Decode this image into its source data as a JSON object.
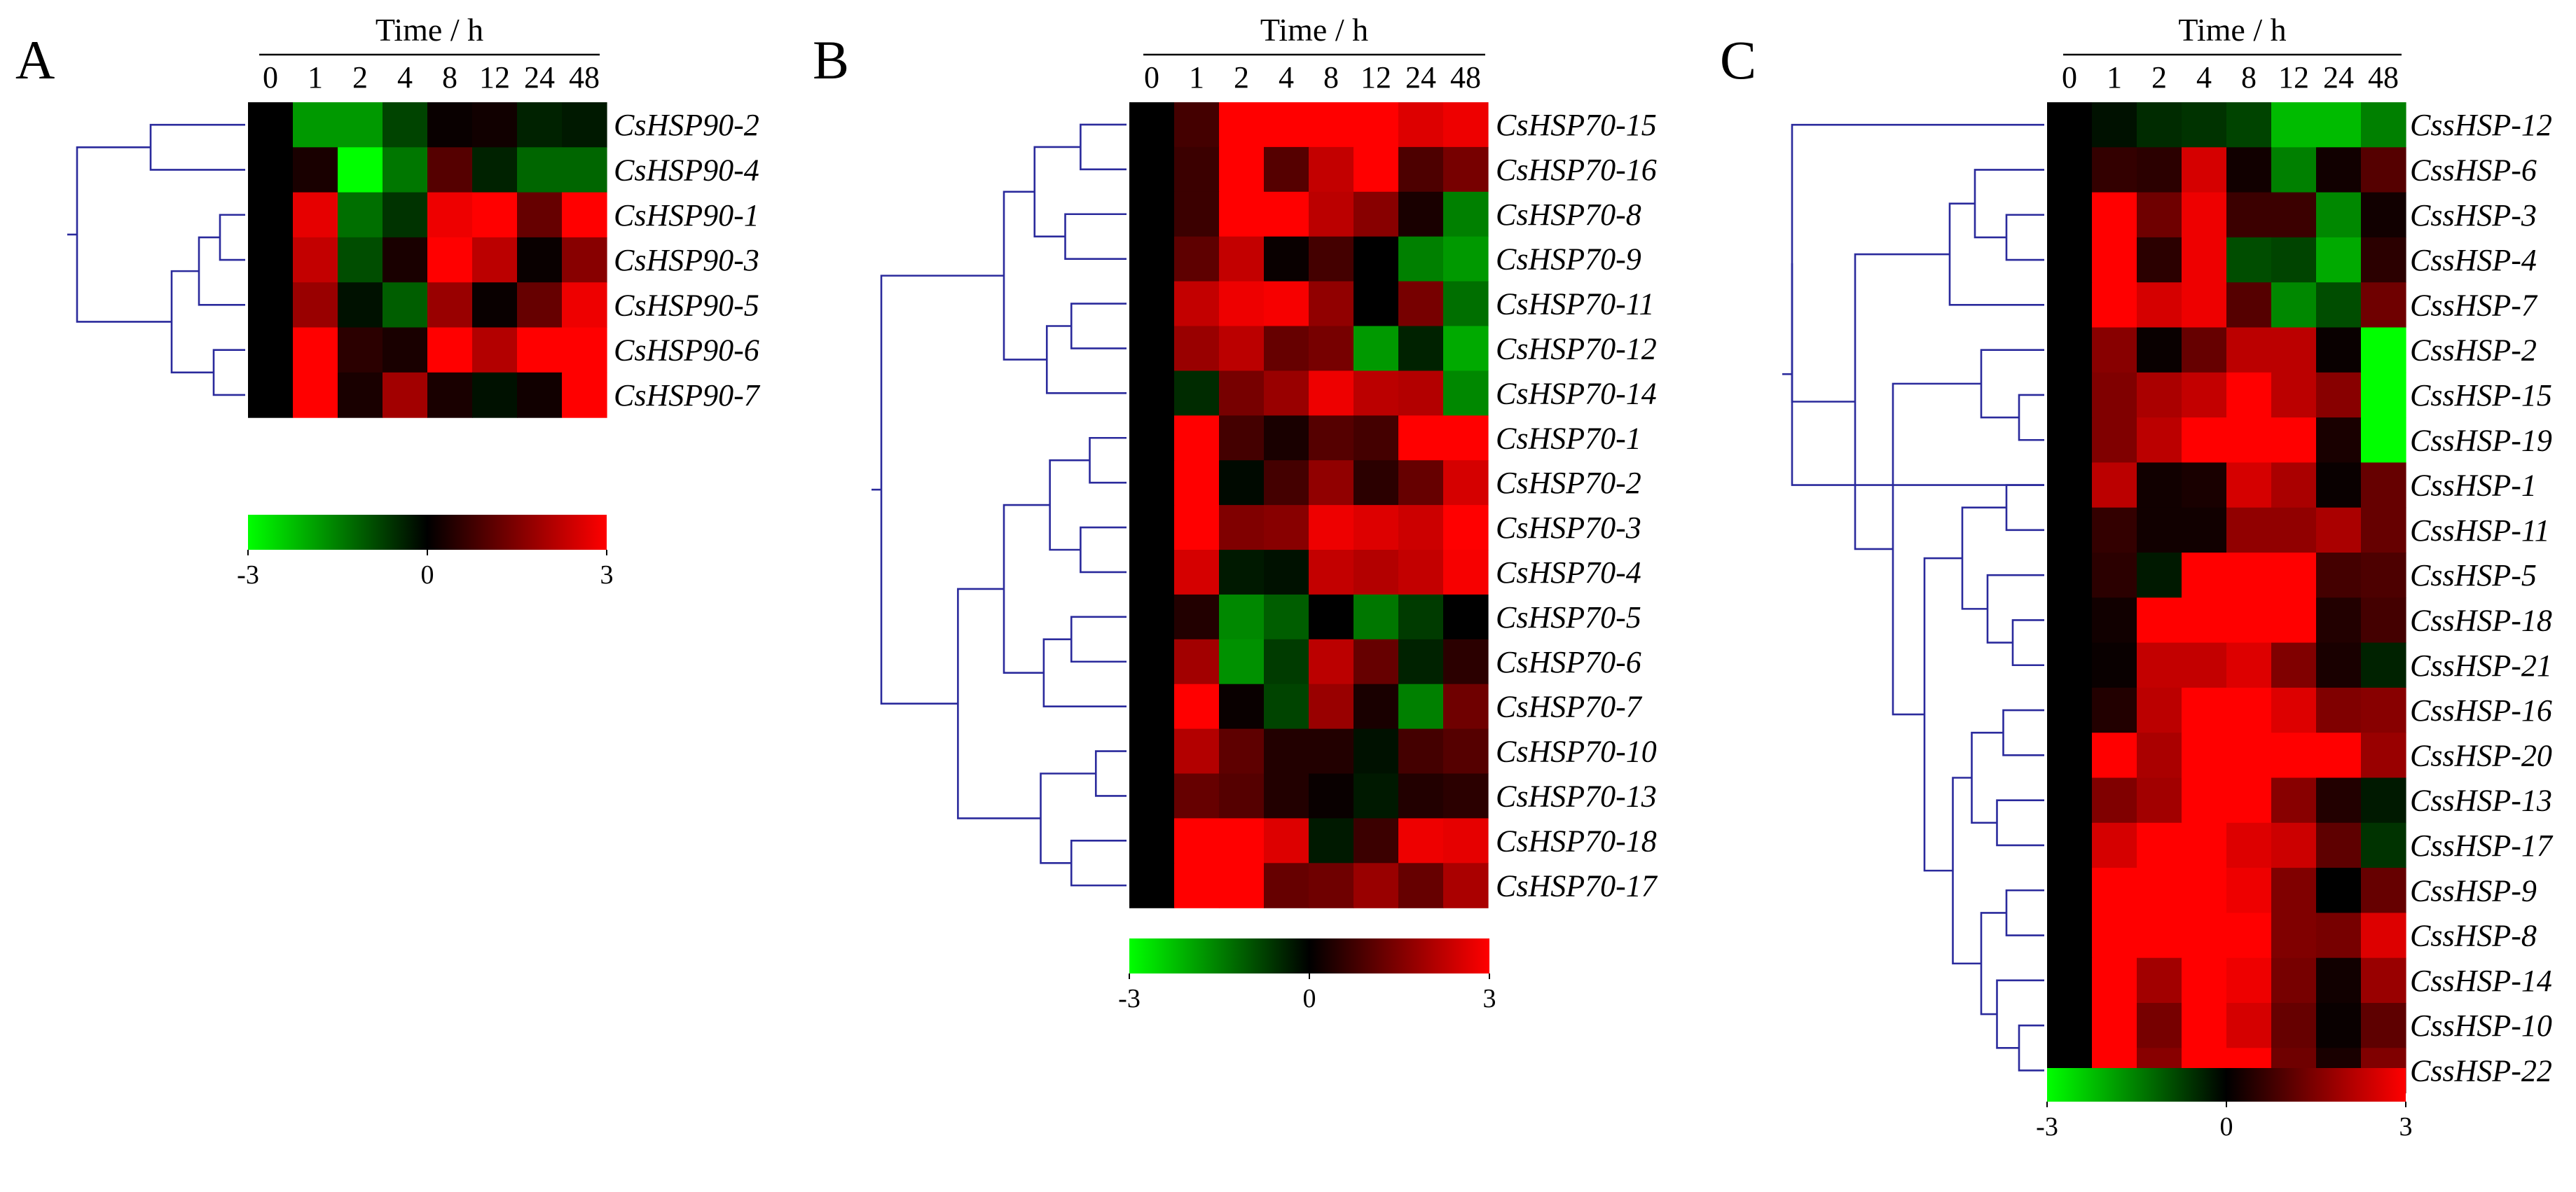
{
  "chart_data": [
    {
      "type": "heatmap",
      "panel": "A",
      "title": "Time / h",
      "columns": [
        "0",
        "1",
        "2",
        "4",
        "8",
        "12",
        "24",
        "48"
      ],
      "rows": [
        "CsHSP90-2",
        "CsHSP90-4",
        "CsHSP90-1",
        "CsHSP90-3",
        "CsHSP90-5",
        "CsHSP90-6",
        "CsHSP90-7"
      ],
      "values": [
        [
          0,
          -1.8,
          -1.8,
          -0.8,
          0.1,
          0.2,
          -0.4,
          -0.3
        ],
        [
          0,
          0.3,
          -3,
          -1.4,
          1.0,
          -0.4,
          -1.2,
          -1.2
        ],
        [
          0,
          2.7,
          -1.3,
          -0.6,
          2.8,
          3.0,
          1.2,
          3.0
        ],
        [
          0,
          2.3,
          -0.9,
          0.3,
          3.0,
          2.2,
          0.1,
          1.6
        ],
        [
          0,
          1.8,
          -0.2,
          -1.1,
          1.8,
          0.1,
          1.2,
          2.8
        ],
        [
          0,
          3.0,
          0.5,
          0.3,
          3.0,
          2.1,
          3.0,
          3.0
        ],
        [
          0,
          3.0,
          0.3,
          1.9,
          0.3,
          -0.2,
          0.2,
          3.0
        ]
      ],
      "colorbar": {
        "min": -3,
        "max": 3,
        "labels": [
          "-3",
          "0",
          "3"
        ]
      }
    },
    {
      "type": "heatmap",
      "panel": "B",
      "title": "Time / h",
      "columns": [
        "0",
        "1",
        "2",
        "4",
        "8",
        "12",
        "24",
        "48"
      ],
      "rows": [
        "CsHSP70-15",
        "CsHSP70-16",
        "CsHSP70-8",
        "CsHSP70-9",
        "CsHSP70-11",
        "CsHSP70-12",
        "CsHSP70-14",
        "CsHSP70-1",
        "CsHSP70-2",
        "CsHSP70-3",
        "CsHSP70-4",
        "CsHSP70-5",
        "CsHSP70-6",
        "CsHSP70-7",
        "CsHSP70-10",
        "CsHSP70-13",
        "CsHSP70-18",
        "CsHSP70-17"
      ],
      "values": [
        [
          0,
          0.8,
          3.0,
          3.0,
          3.0,
          3.0,
          2.6,
          2.8
        ],
        [
          0,
          0.7,
          3.0,
          1.0,
          2.3,
          3.0,
          0.9,
          1.4
        ],
        [
          0,
          0.7,
          3.0,
          3.0,
          2.2,
          1.6,
          0.3,
          -1.5
        ],
        [
          0,
          1.1,
          2.3,
          0.1,
          0.8,
          0.0,
          -1.5,
          -1.8
        ],
        [
          0,
          2.3,
          2.8,
          2.9,
          1.7,
          0.0,
          1.4,
          -1.3
        ],
        [
          0,
          1.8,
          2.2,
          1.2,
          1.4,
          -1.8,
          -0.4,
          -2.0
        ],
        [
          0,
          -0.5,
          1.4,
          1.8,
          2.8,
          2.2,
          2.1,
          -1.6
        ],
        [
          0,
          3.0,
          0.8,
          0.3,
          1.0,
          0.8,
          3.0,
          3.0
        ],
        [
          0,
          3.0,
          -0.1,
          0.8,
          1.7,
          0.5,
          1.2,
          2.5
        ],
        [
          0,
          3.0,
          1.5,
          1.6,
          2.8,
          2.6,
          2.4,
          3.0
        ],
        [
          0,
          2.5,
          -0.3,
          -0.2,
          2.3,
          2.1,
          2.3,
          2.9
        ],
        [
          0,
          0.4,
          -1.6,
          -1.1,
          0.0,
          -1.4,
          -0.7,
          0.0
        ],
        [
          0,
          1.9,
          -1.7,
          -0.7,
          2.2,
          1.2,
          -0.4,
          0.5
        ],
        [
          0,
          3.0,
          0.1,
          -0.8,
          1.8,
          0.3,
          -1.5,
          1.3
        ],
        [
          0,
          2.1,
          1.1,
          0.4,
          0.4,
          -0.2,
          0.8,
          1.0
        ],
        [
          0,
          1.2,
          1.0,
          0.4,
          0.1,
          -0.3,
          0.4,
          0.5
        ],
        [
          0,
          3.0,
          3.0,
          2.6,
          -0.3,
          0.7,
          2.8,
          2.7
        ],
        [
          0,
          3.0,
          3.0,
          1.2,
          1.3,
          1.8,
          1.2,
          2.0
        ]
      ],
      "colorbar": {
        "min": -3,
        "max": 3,
        "labels": [
          "-3",
          "0",
          "3"
        ]
      }
    },
    {
      "type": "heatmap",
      "panel": "C",
      "title": "Time / h",
      "columns": [
        "0",
        "1",
        "2",
        "4",
        "8",
        "12",
        "24",
        "48"
      ],
      "rows": [
        "CssHSP-12",
        "CssHSP-6",
        "CssHSP-3",
        "CssHSP-4",
        "CssHSP-7",
        "CssHSP-2",
        "CssHSP-15",
        "CssHSP-19",
        "CssHSP-1",
        "CssHSP-11",
        "CssHSP-5",
        "CssHSP-18",
        "CssHSP-21",
        "CssHSP-16",
        "CssHSP-20",
        "CssHSP-13",
        "CssHSP-17",
        "CssHSP-9",
        "CssHSP-8",
        "CssHSP-14",
        "CssHSP-10",
        "CssHSP-22"
      ],
      "values": [
        [
          0,
          -0.2,
          -0.5,
          -0.6,
          -0.8,
          -2.2,
          -2.2,
          -1.5
        ],
        [
          0,
          0.6,
          0.5,
          2.5,
          0.2,
          -1.5,
          0.2,
          1.0
        ],
        [
          0,
          3.0,
          1.3,
          2.8,
          0.7,
          0.7,
          -1.6,
          0.2
        ],
        [
          0,
          3.0,
          0.5,
          2.8,
          -0.9,
          -0.8,
          -2.0,
          0.5
        ],
        [
          0,
          3.0,
          2.5,
          2.8,
          1.0,
          -1.6,
          -0.9,
          1.3
        ],
        [
          0,
          1.6,
          0.1,
          1.2,
          2.2,
          2.2,
          0.1,
          -3.0
        ],
        [
          0,
          1.5,
          2.0,
          2.3,
          3.0,
          2.2,
          1.6,
          -3.0
        ],
        [
          0,
          1.5,
          2.2,
          3.0,
          3.0,
          3.0,
          0.3,
          -3.0
        ],
        [
          0,
          2.2,
          0.2,
          0.3,
          2.5,
          2.0,
          0.1,
          1.2
        ],
        [
          0,
          0.6,
          0.2,
          0.2,
          1.7,
          1.7,
          2.0,
          1.2
        ],
        [
          0,
          0.5,
          -0.3,
          3.0,
          3.0,
          3.0,
          0.8,
          0.9
        ],
        [
          0,
          0.2,
          3.0,
          3.0,
          3.0,
          3.0,
          0.4,
          0.8
        ],
        [
          0,
          0.1,
          2.3,
          2.3,
          2.6,
          1.5,
          0.3,
          -0.4
        ],
        [
          0,
          0.4,
          2.2,
          3.0,
          3.0,
          2.6,
          1.5,
          1.6
        ],
        [
          0,
          3.0,
          2.0,
          3.0,
          3.0,
          3.0,
          3.0,
          1.8
        ],
        [
          0,
          1.5,
          1.9,
          3.0,
          3.0,
          1.6,
          0.4,
          -0.3
        ],
        [
          0,
          2.5,
          3.0,
          3.0,
          2.6,
          2.4,
          1.1,
          -0.6
        ],
        [
          0,
          3.0,
          3.0,
          3.0,
          2.8,
          1.5,
          0.0,
          1.2
        ],
        [
          0,
          3.0,
          3.0,
          3.0,
          3.0,
          1.5,
          1.4,
          2.6
        ],
        [
          0,
          3.0,
          1.9,
          3.0,
          2.8,
          1.4,
          0.2,
          1.8
        ],
        [
          0,
          3.0,
          1.4,
          3.0,
          2.5,
          1.2,
          0.1,
          1.1
        ],
        [
          0,
          3.0,
          1.6,
          3.0,
          3.0,
          1.3,
          0.3,
          1.5
        ]
      ],
      "colorbar": {
        "min": -3,
        "max": 3,
        "labels": [
          "-3",
          "0",
          "3"
        ]
      }
    }
  ],
  "colors": {
    "low": "#00ff00",
    "mid": "#000000",
    "high": "#ff0000",
    "dendrogram": "#2a2a9c"
  }
}
